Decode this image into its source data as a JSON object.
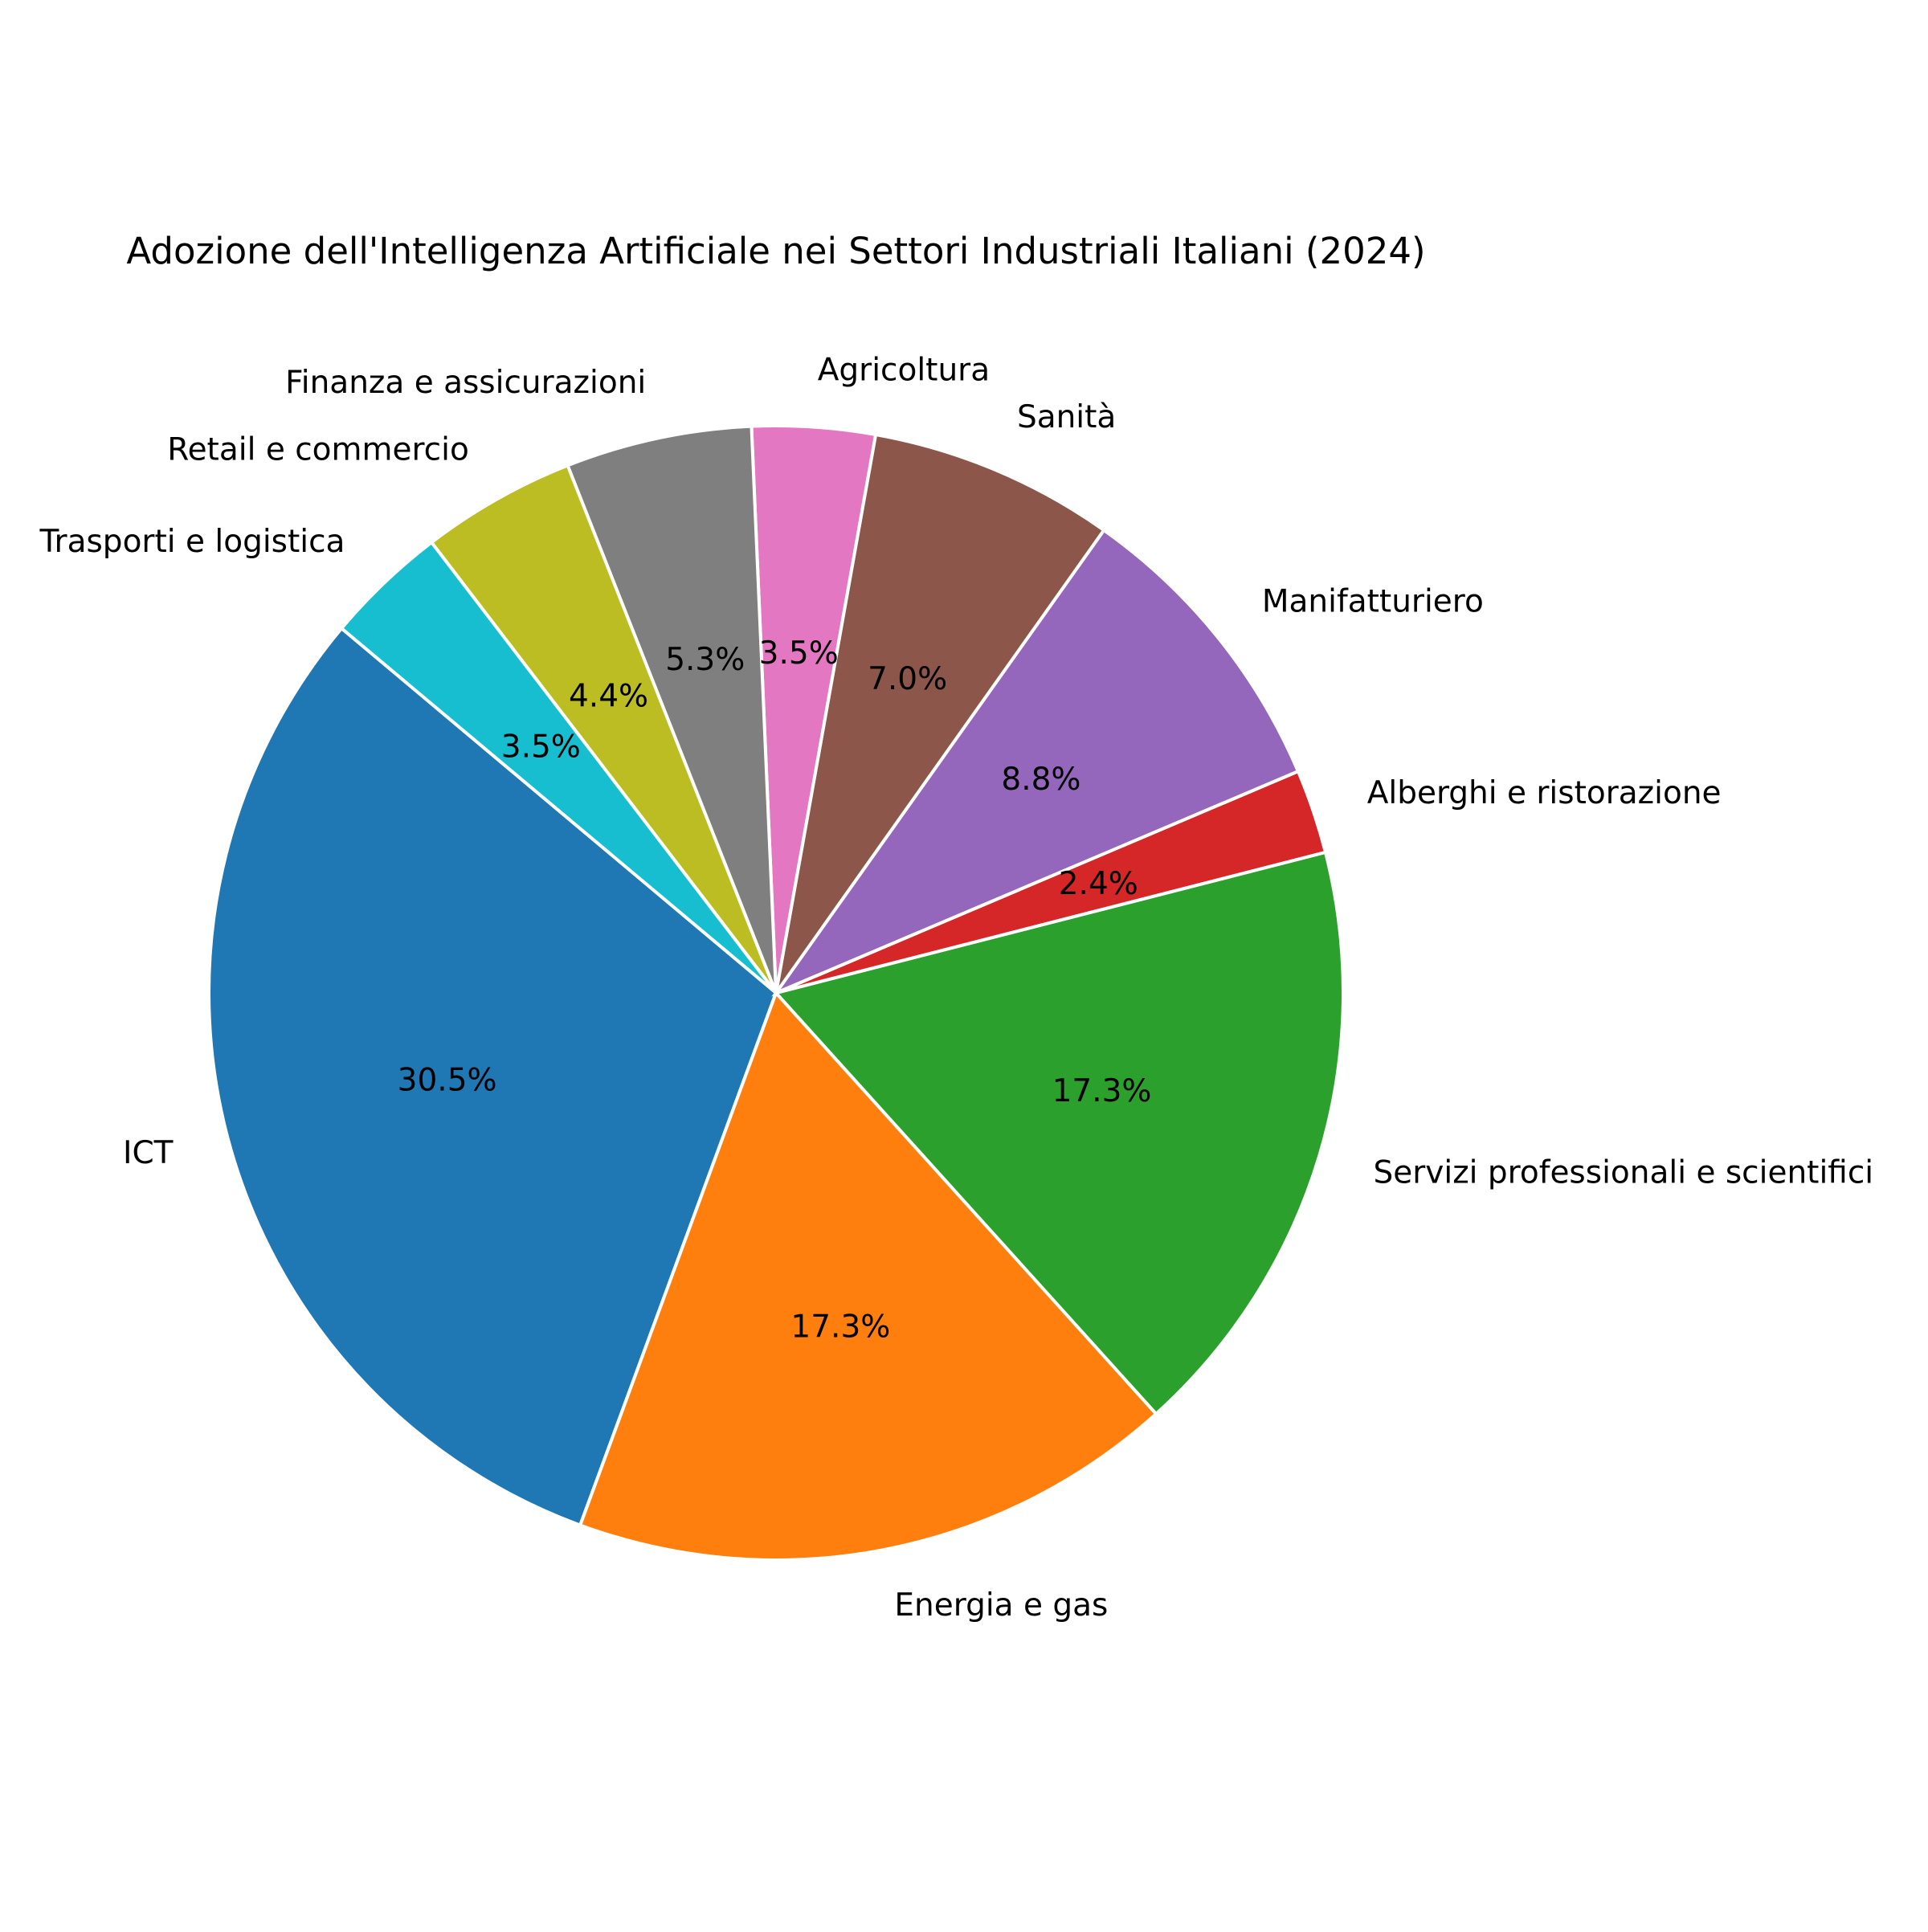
{
  "chart_data": {
    "type": "pie",
    "title": "Adozione dell'Intelligenza Artificiale nei Settori Industriali Italiani (2024)",
    "start_angle_deg": 140,
    "direction": "counterclockwise",
    "slices": [
      {
        "label": "ICT",
        "percent": 30.5,
        "pct_text": "30.5%",
        "color": "#1f77b4"
      },
      {
        "label": "Energia e gas",
        "percent": 17.3,
        "pct_text": "17.3%",
        "color": "#ff7f0e"
      },
      {
        "label": "Servizi professionali e scientifici",
        "percent": 17.3,
        "pct_text": "17.3%",
        "color": "#2ca02c"
      },
      {
        "label": "Alberghi e ristorazione",
        "percent": 2.4,
        "pct_text": "2.4%",
        "color": "#d62728"
      },
      {
        "label": "Manifatturiero",
        "percent": 8.8,
        "pct_text": "8.8%",
        "color": "#9467bd"
      },
      {
        "label": "Sanità",
        "percent": 7.0,
        "pct_text": "7.0%",
        "color": "#8c564b"
      },
      {
        "label": "Agricoltura",
        "percent": 3.5,
        "pct_text": "3.5%",
        "color": "#e377c2"
      },
      {
        "label": "Finanza e assicurazioni",
        "percent": 5.3,
        "pct_text": "5.3%",
        "color": "#7f7f7f"
      },
      {
        "label": "Retail e commercio",
        "percent": 4.4,
        "pct_text": "4.4%",
        "color": "#bcbd22"
      },
      {
        "label": "Trasporti e logistica",
        "percent": 3.5,
        "pct_text": "3.5%",
        "color": "#17becf"
      }
    ]
  }
}
